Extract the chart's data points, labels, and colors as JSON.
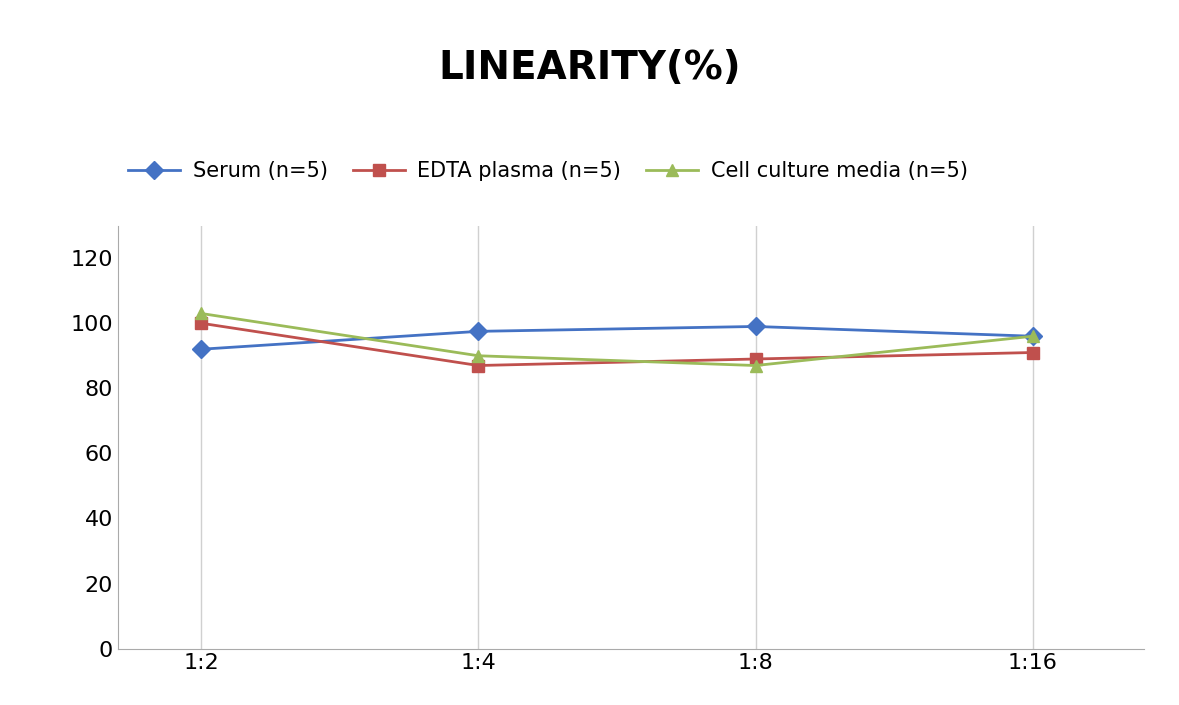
{
  "title": "LINEARITY(%)",
  "title_fontsize": 28,
  "title_fontweight": "bold",
  "x_labels": [
    "1:2",
    "1:4",
    "1:8",
    "1:16"
  ],
  "x_positions": [
    0,
    1,
    2,
    3
  ],
  "series": [
    {
      "label": "Serum (n=5)",
      "values": [
        92,
        97.5,
        99,
        96
      ],
      "color": "#4472C4",
      "marker": "D",
      "markersize": 9,
      "linewidth": 2
    },
    {
      "label": "EDTA plasma (n=5)",
      "values": [
        100,
        87,
        89,
        91
      ],
      "color": "#C0504D",
      "marker": "s",
      "markersize": 9,
      "linewidth": 2
    },
    {
      "label": "Cell culture media (n=5)",
      "values": [
        103,
        90,
        87,
        96
      ],
      "color": "#9BBB59",
      "marker": "^",
      "markersize": 9,
      "linewidth": 2
    }
  ],
  "ylim": [
    0,
    130
  ],
  "yticks": [
    0,
    20,
    40,
    60,
    80,
    100,
    120
  ],
  "grid_color": "#D0D0D0",
  "background_color": "#FFFFFF",
  "legend_fontsize": 15,
  "tick_fontsize": 16,
  "spine_color": "#AAAAAA"
}
